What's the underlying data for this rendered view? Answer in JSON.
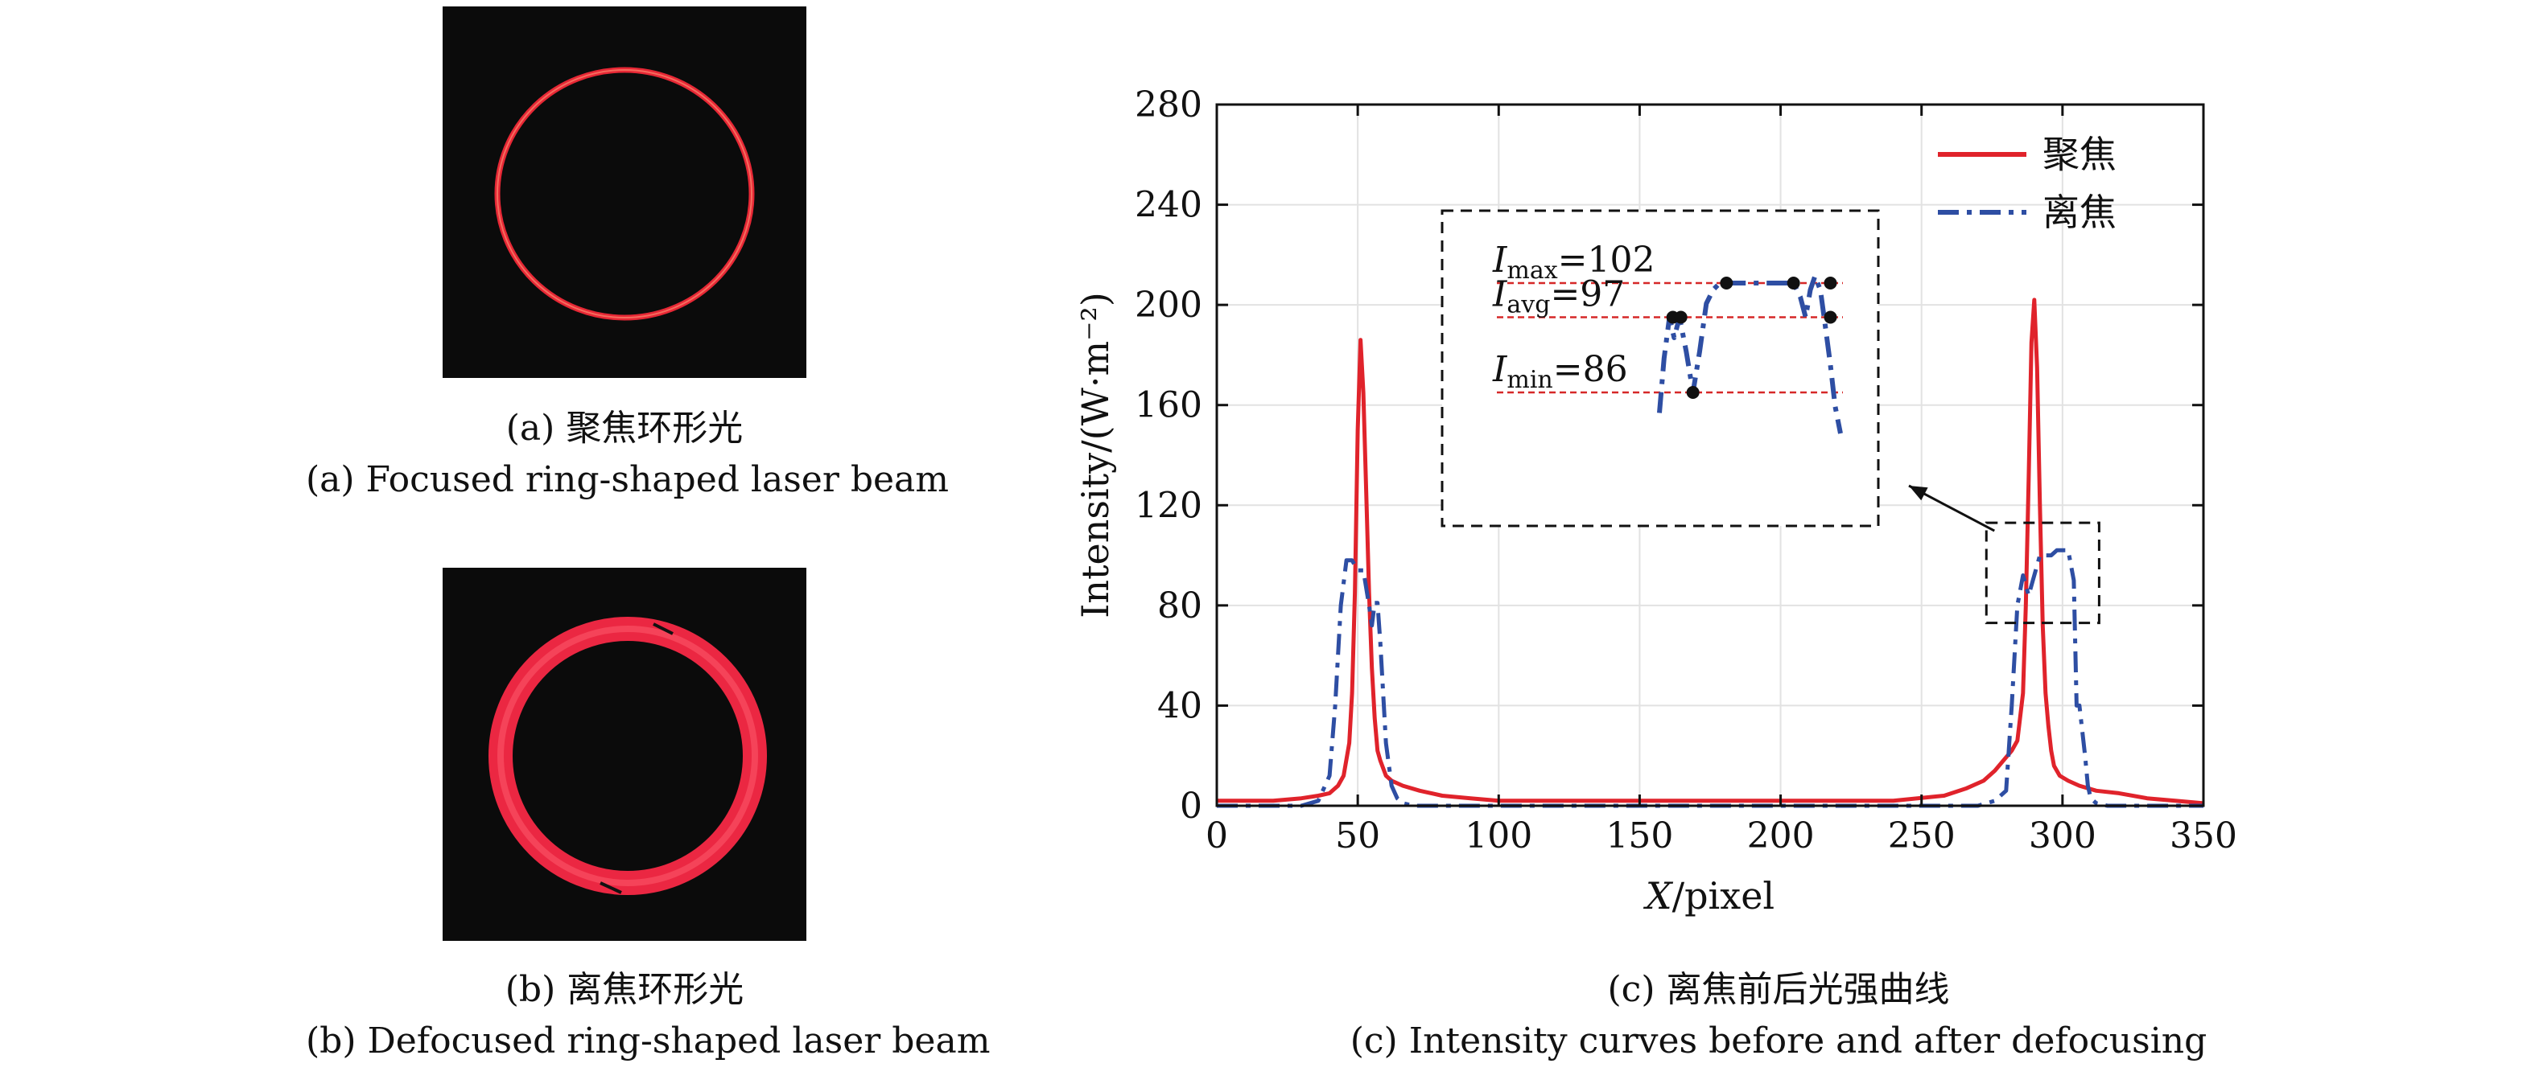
{
  "panel_a": {
    "caption_cn": "(a) 聚焦环形光",
    "caption_en": "(a) Focused ring-shaped laser beam"
  },
  "panel_b": {
    "caption_cn": "(b) 离焦环形光",
    "caption_en": "(b) Defocused ring-shaped laser beam"
  },
  "panel_c": {
    "caption_cn": "(c) 离焦前后光强曲线",
    "caption_en": "(c) Intensity curves before and after defocusing"
  },
  "colors": {
    "focused": "#e0232b",
    "defocused": "#2e4ea3",
    "ring": "#ff3040",
    "photo_bg": "#0b0b0b"
  },
  "chart_data": {
    "type": "line",
    "title": "",
    "xlabel_italic": "X",
    "xlabel_rest": "/pixel",
    "ylabel": "Intensity/(W·m⁻²)",
    "xlim": [
      0,
      350
    ],
    "ylim": [
      0,
      280
    ],
    "xticks": [
      0,
      50,
      100,
      150,
      200,
      250,
      300,
      350
    ],
    "yticks": [
      0,
      40,
      80,
      120,
      160,
      200,
      240,
      280
    ],
    "grid": true,
    "legend_position": "top-right",
    "series": [
      {
        "name": "聚焦",
        "style": "solid",
        "color": "#e0232b",
        "x": [
          0,
          20,
          30,
          36,
          40,
          43,
          45,
          47,
          48,
          49,
          50,
          51,
          52,
          53,
          54,
          55,
          56,
          57,
          58,
          60,
          62,
          66,
          72,
          80,
          90,
          100,
          150,
          200,
          240,
          258,
          266,
          272,
          276,
          279,
          282,
          284,
          286,
          287,
          288,
          289,
          290,
          291,
          292,
          293,
          294,
          295,
          296,
          297,
          299,
          302,
          306,
          312,
          320,
          330,
          340,
          350
        ],
        "y": [
          2,
          2,
          3,
          4,
          5,
          8,
          12,
          25,
          45,
          85,
          150,
          186,
          165,
          125,
          85,
          55,
          35,
          22,
          18,
          12,
          10,
          8,
          6,
          4,
          3,
          2,
          2,
          2,
          2,
          4,
          7,
          10,
          14,
          18,
          22,
          26,
          45,
          80,
          130,
          185,
          202,
          175,
          120,
          72,
          45,
          32,
          22,
          16,
          12,
          10,
          8,
          6,
          5,
          3,
          2,
          1
        ]
      },
      {
        "name": "离焦",
        "style": "dash-dot",
        "color": "#2e4ea3",
        "x": [
          0,
          30,
          36,
          40,
          42,
          44,
          46,
          48,
          50,
          52,
          54,
          55,
          56,
          57,
          58,
          59,
          60,
          62,
          64,
          66,
          70,
          80,
          100,
          150,
          200,
          250,
          270,
          276,
          280,
          282,
          284,
          286,
          288,
          290,
          292,
          294,
          296,
          298,
          300,
          302,
          304,
          305,
          306,
          307,
          308,
          309,
          310,
          312,
          316,
          330,
          350
        ],
        "y": [
          0,
          0,
          2,
          12,
          40,
          80,
          98,
          98,
          94,
          94,
          80,
          72,
          81,
          81,
          65,
          45,
          25,
          8,
          3,
          1,
          0,
          0,
          0,
          0,
          0,
          0,
          0,
          2,
          6,
          40,
          80,
          92,
          84,
          92,
          100,
          100,
          100,
          102,
          102,
          102,
          90,
          40,
          40,
          30,
          20,
          8,
          3,
          1,
          0,
          0,
          0
        ]
      }
    ],
    "inset": {
      "zoom_box": {
        "x": [
          273,
          313
        ],
        "y": [
          73,
          113
        ]
      },
      "x_range": [
        275,
        310
      ],
      "y_range": [
        78,
        108
      ],
      "max_label_symbol": "I",
      "max_label_sub": "max",
      "max_label_value": "=102",
      "avg_label_symbol": "I",
      "avg_label_sub": "avg",
      "avg_label_value": "=97",
      "min_label_symbol": "I",
      "min_label_sub": "min",
      "min_label_value": "=86",
      "max_value": 102,
      "avg_value": 97,
      "min_value": 86,
      "curve": {
        "x": [
          279.0,
          279.7,
          280.5,
          281.2,
          282.0,
          283.0,
          284.0,
          285.0,
          286.0,
          287.0,
          288.0,
          289.0,
          290.0,
          291.0,
          292.0,
          293.0,
          294.0,
          295.0,
          296.0,
          297.0,
          298.0,
          299.0,
          300.0,
          300.8,
          301.5,
          302.2,
          303.0,
          303.7,
          304.5,
          305.2,
          306.0
        ],
        "y": [
          83,
          91,
          97,
          94,
          97,
          92,
          86,
          92,
          99,
          101,
          102,
          102,
          102,
          102,
          102,
          102,
          102,
          102,
          102,
          102,
          102,
          102,
          100,
          97,
          101,
          103,
          101,
          96,
          90,
          84,
          80
        ]
      },
      "markers": [
        {
          "x": 289.0,
          "y": 102
        },
        {
          "x": 299.0,
          "y": 102
        },
        {
          "x": 304.5,
          "y": 102
        },
        {
          "x": 281.0,
          "y": 97
        },
        {
          "x": 282.2,
          "y": 97
        },
        {
          "x": 304.5,
          "y": 97
        },
        {
          "x": 284.0,
          "y": 86
        }
      ]
    }
  }
}
